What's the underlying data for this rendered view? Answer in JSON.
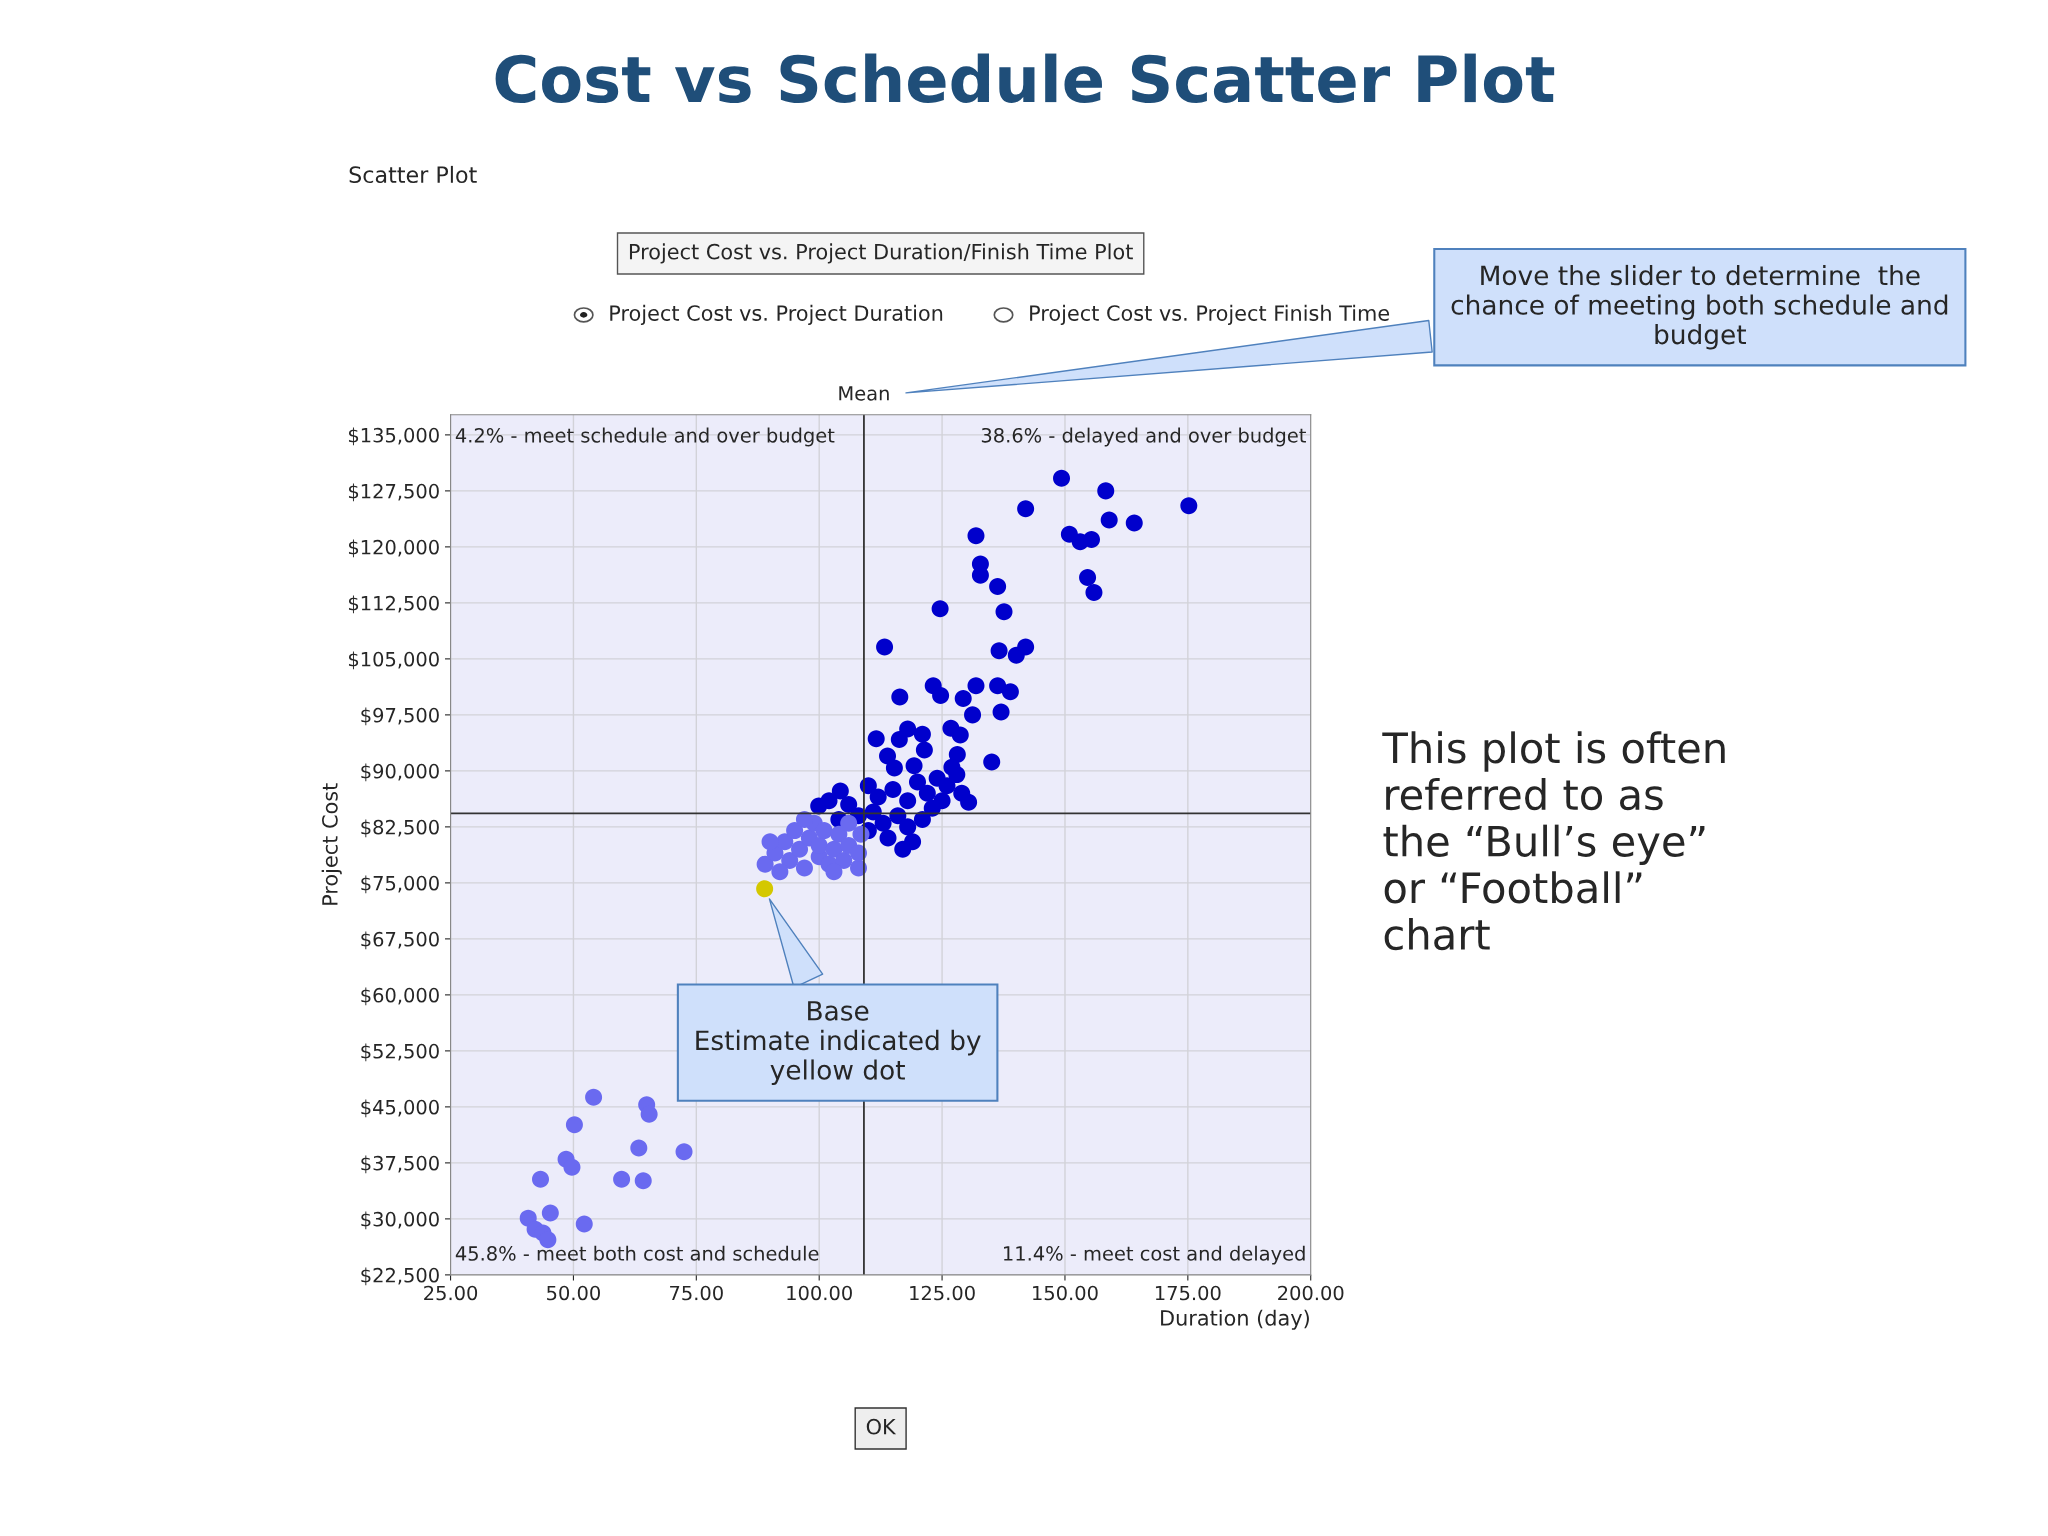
{
  "chart_data": {
    "type": "scatter",
    "title": "Cost vs Schedule Scatter Plot",
    "subtitle": "Project Cost vs. Project Duration/Finish Time Plot",
    "xlabel": "Duration (day)",
    "ylabel": "Project Cost",
    "xlim": [
      25,
      200
    ],
    "ylim": [
      22500,
      137700
    ],
    "xticks": [
      {
        "value": 25,
        "label": "25.00"
      },
      {
        "value": 50,
        "label": "50.00"
      },
      {
        "value": 75,
        "label": "75.00"
      },
      {
        "value": 100,
        "label": "100.00"
      },
      {
        "value": 125,
        "label": "125.00"
      },
      {
        "value": 150,
        "label": "150.00"
      },
      {
        "value": 175,
        "label": "175.00"
      },
      {
        "value": 200,
        "label": "200.00"
      }
    ],
    "yticks": [
      {
        "value": 22500,
        "label": "$22,500"
      },
      {
        "value": 30000,
        "label": "$30,000"
      },
      {
        "value": 37500,
        "label": "$37,500"
      },
      {
        "value": 45000,
        "label": "$45,000"
      },
      {
        "value": 52500,
        "label": "$52,500"
      },
      {
        "value": 60000,
        "label": "$60,000"
      },
      {
        "value": 67500,
        "label": "$67,500"
      },
      {
        "value": 75000,
        "label": "$75,000"
      },
      {
        "value": 82500,
        "label": "$82,500"
      },
      {
        "value": 90000,
        "label": "$90,000"
      },
      {
        "value": 97500,
        "label": "$97,500"
      },
      {
        "value": 105000,
        "label": "$105,000"
      },
      {
        "value": 112500,
        "label": "$112,500"
      },
      {
        "value": 120000,
        "label": "$120,000"
      },
      {
        "value": 127500,
        "label": "$127,500"
      },
      {
        "value": 135000,
        "label": "$135,000"
      }
    ],
    "grid": true,
    "marker": "circle",
    "series": [
      {
        "color": "#0000cc",
        "x": [
          149.3,
          158.3,
          142.0,
          175.2,
          159.0,
          164.1,
          131.9,
          150.9,
          153.1,
          155.4,
          132.8,
          132.8,
          136.3,
          154.6,
          155.9,
          124.6,
          137.6,
          113.3,
          136.6,
          142.0,
          140.1,
          123.2,
          124.7,
          116.4,
          131.9,
          129.3,
          136.3,
          138.9,
          131.2,
          137.0,
          111.6,
          126.8,
          128.7,
          135.1,
          118.0,
          121.0,
          116.3,
          113.9,
          115.3,
          121.4,
          119.3,
          128.1,
          104.3,
          99.9,
          130.4,
          110,
          112,
          115,
          118,
          120,
          122,
          124,
          126,
          128,
          125,
          116,
          113,
          110,
          111,
          114,
          118,
          121,
          123,
          119,
          117,
          106,
          108,
          127,
          129,
          104,
          102
        ],
        "values": [
          129200,
          127500,
          125100,
          125500,
          123600,
          123200,
          121500,
          121700,
          120700,
          121000,
          117700,
          116200,
          114700,
          115900,
          113900,
          111700,
          111300,
          106600,
          106100,
          106600,
          105500,
          101400,
          100100,
          99900,
          101400,
          99700,
          101400,
          100600,
          97500,
          97900,
          94300,
          95700,
          94800,
          91200,
          95600,
          94900,
          94200,
          92000,
          90400,
          92800,
          90700,
          92200,
          87300,
          85300,
          85800,
          88000,
          86500,
          87500,
          86000,
          88500,
          87000,
          89000,
          88000,
          89500,
          86000,
          84000,
          83000,
          82000,
          84500,
          81000,
          82500,
          83500,
          85000,
          80500,
          79500,
          85500,
          84000,
          90500,
          87000,
          83500,
          86000
        ]
      },
      {
        "color": "#6a6af0",
        "x": [
          89,
          91,
          93,
          94,
          95,
          96,
          97,
          98,
          99,
          100,
          100,
          101,
          102,
          103,
          104,
          105,
          106,
          108.5,
          108,
          108,
          92,
          97,
          103,
          106,
          90,
          54.1,
          64.9,
          65.4,
          50.2,
          63.3,
          72.5,
          48.5,
          49.7,
          43.3,
          59.8,
          64.2,
          45.3,
          40.8,
          42.2,
          43.8,
          44.8,
          52.2
        ],
        "values": [
          77500,
          79000,
          80500,
          78000,
          82000,
          79500,
          77000,
          81000,
          83000,
          78500,
          80000,
          82000,
          77500,
          79500,
          81500,
          78000,
          80000,
          81500,
          77000,
          79000,
          76500,
          83500,
          76500,
          83000,
          80500,
          46300,
          45300,
          44000,
          42600,
          39500,
          39000,
          38000,
          36900,
          35300,
          35300,
          35100,
          30800,
          30100,
          28600,
          28100,
          27200,
          29300
        ]
      },
      {
        "color": "#d4c800",
        "x": [
          88.9
        ],
        "values": [
          74200
        ]
      }
    ],
    "ref_lines": [
      {
        "axis": "x",
        "value": 109.1,
        "label": "Mean",
        "color": "#333333"
      },
      {
        "axis": "y",
        "value": 84300,
        "color": "#333333"
      }
    ],
    "annotations": [
      "Scatter Plot",
      "Project Cost vs. Project Duration",
      "Project Cost vs. Project Finish Time",
      "4.2% - meet schedule and over budget",
      "38.6% - delayed and over budget",
      "45.8% - meet both cost and schedule",
      "11.4% - meet cost and delayed",
      "OK",
      "Move the slider to determine  the\nchance of meeting both schedule and\nbudget",
      "Base\nEstimate indicated by\nyellow dot",
      "This plot is often\nreferred to as\nthe “Bull’s eye”\nor “Football”\nchart"
    ]
  }
}
